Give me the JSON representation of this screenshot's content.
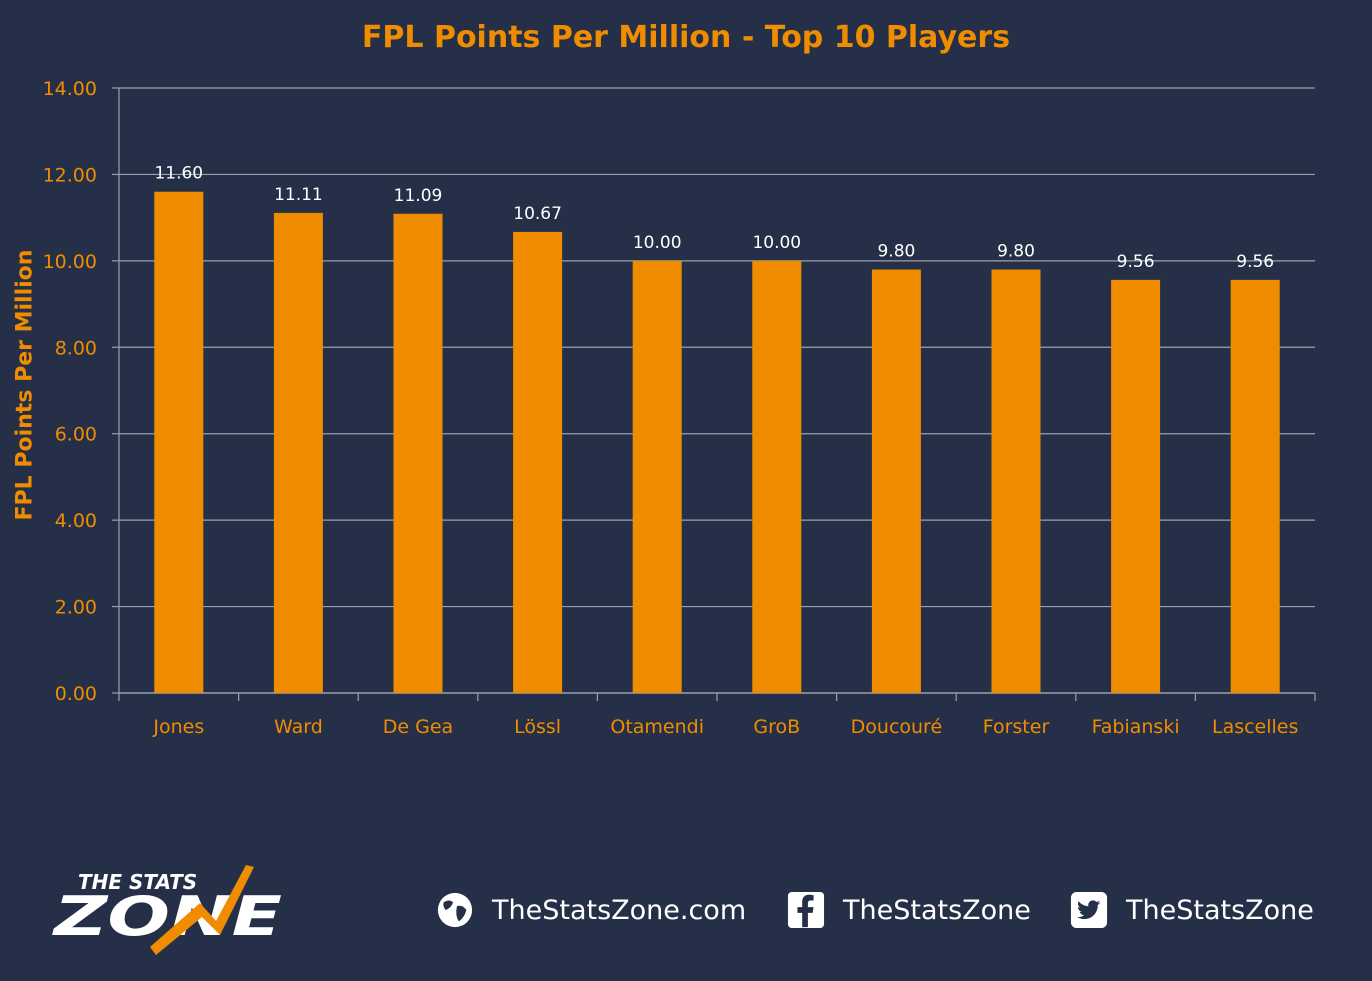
{
  "chart_data": {
    "type": "bar",
    "title": "FPL Points Per Million - Top 10 Players",
    "ylabel": "FPL Points Per Million",
    "xlabel": "",
    "categories": [
      "Jones",
      "Ward",
      "De Gea",
      "Lössl",
      "Otamendi",
      "GroB",
      "Doucouré",
      "Forster",
      "Fabianski",
      "Lascelles"
    ],
    "values": [
      11.6,
      11.11,
      11.09,
      10.67,
      10.0,
      10.0,
      9.8,
      9.8,
      9.56,
      9.56
    ],
    "data_labels": [
      "11.60",
      "11.11",
      "11.09",
      "10.67",
      "10.00",
      "10.00",
      "9.80",
      "9.80",
      "9.56",
      "9.56"
    ],
    "y_ticks": [
      "0.00",
      "2.00",
      "4.00",
      "6.00",
      "8.00",
      "10.00",
      "12.00",
      "14.00"
    ],
    "ylim": [
      0,
      14
    ],
    "grid": true,
    "legend": "none",
    "colors": {
      "bar": "#f08c00",
      "text_accent": "#f08c00",
      "background": "#253048",
      "grid": "#9aa0aa"
    }
  },
  "footer": {
    "logo_text_top": "THE STATS",
    "logo_text_bottom": "ZONE",
    "website": "TheStatsZone.com",
    "facebook": "TheStatsZone",
    "twitter": "TheStatsZone",
    "icons": {
      "website": "globe-icon",
      "facebook": "facebook-icon",
      "twitter": "twitter-icon"
    }
  }
}
